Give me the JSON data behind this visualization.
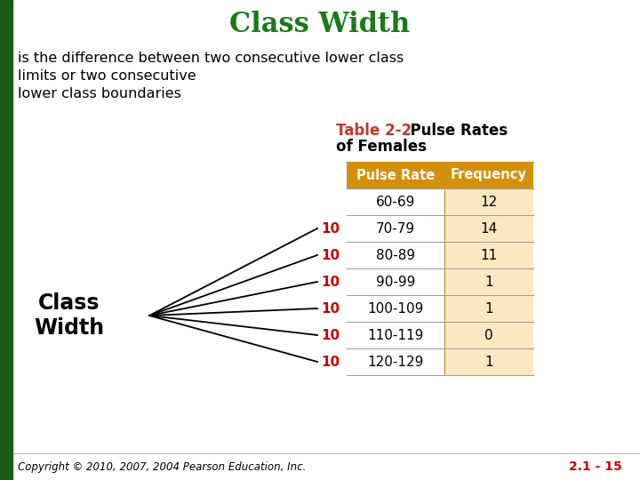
{
  "title": "Class Width",
  "title_color": "#1a7a1a",
  "description": "is the difference between two consecutive lower class\nlimits or two consecutive\nlower class boundaries",
  "table_title_red": "Table 2-2",
  "table_title_black": "  Pulse Rates\nof Females",
  "table_title_color_red": "#c0392b",
  "table_title_color_black": "#000000",
  "col_headers": [
    "Pulse Rate",
    "Frequency"
  ],
  "header_bg": "#d4900a",
  "header_text_color": "#ffffff",
  "row_bg_left": "#ffffff",
  "row_bg_right": "#fce8c0",
  "rows": [
    [
      "60-69",
      "12"
    ],
    [
      "70-79",
      "14"
    ],
    [
      "80-89",
      "11"
    ],
    [
      "90-99",
      "1"
    ],
    [
      "100-109",
      "1"
    ],
    [
      "110-119",
      "0"
    ],
    [
      "120-129",
      "1"
    ]
  ],
  "class_width_label": "Class\nWidth",
  "class_width_value": "10",
  "class_width_color": "#cc0000",
  "left_bar_color": "#1a5c1a",
  "copyright": "Copyright © 2010, 2007, 2004 Pearson Education, Inc.",
  "page_num": "2.1 - 15",
  "bg_color": "#ffffff",
  "border_color": "#999999",
  "line_color": "#c8860a"
}
